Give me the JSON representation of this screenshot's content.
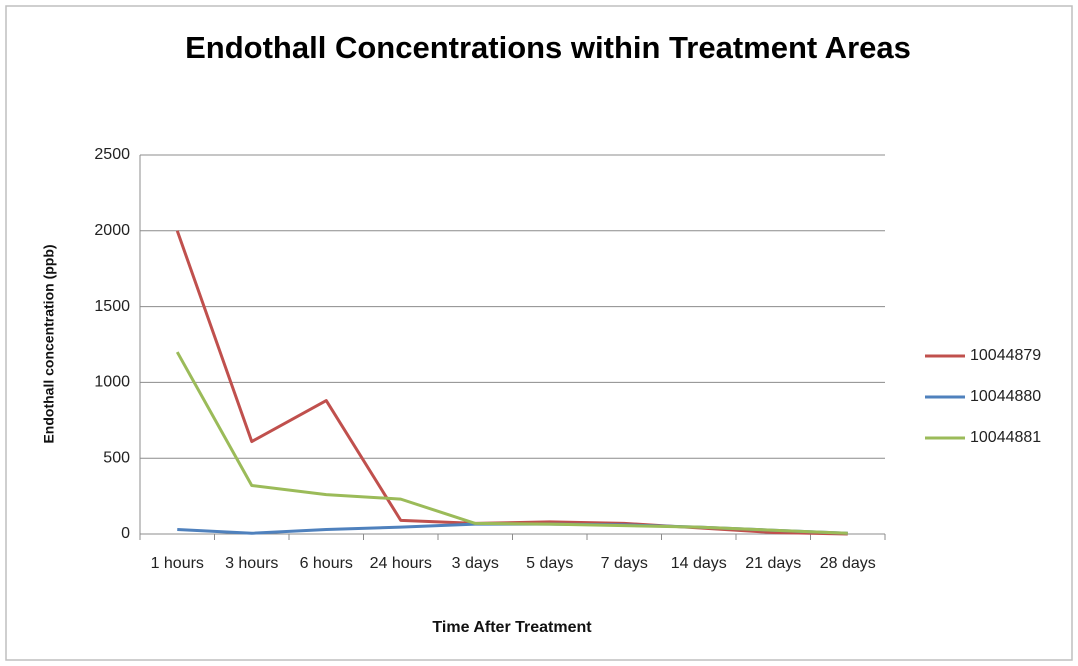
{
  "chart_data": {
    "type": "line",
    "title": "Endothall Concentrations within Treatment Areas",
    "x_label": "Time After Treatment",
    "y_label": "Endothall concentration  (ppb)",
    "categories": [
      "1 hours",
      "3 hours",
      "6 hours",
      "24 hours",
      "3 days",
      "5 days",
      "7 days",
      "14 days",
      "21 days",
      "28 days"
    ],
    "series": [
      {
        "name": "10044879",
        "color": "#c0504d",
        "values": [
          2000,
          610,
          880,
          90,
          70,
          80,
          70,
          40,
          10,
          0
        ]
      },
      {
        "name": "10044880",
        "color": "#4f81bd",
        "values": [
          30,
          5,
          30,
          45,
          65,
          65,
          60,
          45,
          25,
          5
        ]
      },
      {
        "name": "10044881",
        "color": "#9bbb59",
        "values": [
          1200,
          320,
          260,
          230,
          70,
          65,
          55,
          45,
          25,
          5
        ]
      }
    ],
    "ylim": [
      0,
      2500
    ],
    "yticks": [
      0,
      500,
      1000,
      1500,
      2000,
      2500
    ],
    "grid": true,
    "legend": "right"
  }
}
